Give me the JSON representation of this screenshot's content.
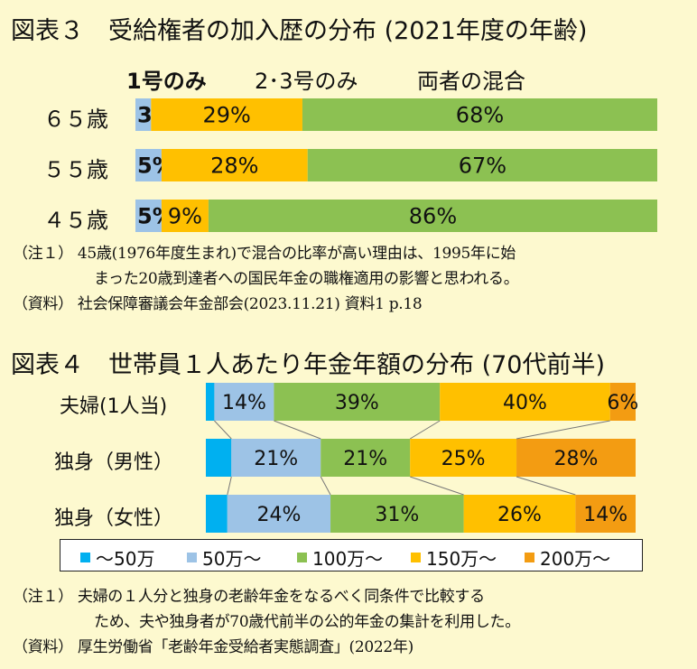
{
  "chart1": {
    "title": "図表３　受給権者の加入歴の分布 (2021年度の年齢)",
    "legend": [
      "1号のみ",
      "2･3号のみ",
      "両者の混合"
    ],
    "notes": [
      "（注１） 45歳(1976年度生まれ)で混合の比率が高い理由は、1995年に始",
      "まった20歳到達者への国民年金の職権適用の影響と思われる。",
      "（資料） 社会保障審議会年金部会(2023.11.21) 資料1 p.18"
    ]
  },
  "chart2": {
    "title": "図表４　世帯員１人あたり年金年額の分布 (70代前半)",
    "legend": [
      "～50万",
      "50万～",
      "100万～",
      "150万～",
      "200万～"
    ],
    "notes": [
      "（注１） 夫婦の１人分と独身の老齢年金をなるべく同条件で比較する",
      "ため、夫や独身者が70歳代前半の公的年金の集計を利用した。",
      "（資料） 厚生労働省「老齢年金受給者実態調査」(2022年)"
    ]
  },
  "chart_data": [
    {
      "type": "bar",
      "stacked": true,
      "orientation": "horizontal",
      "normalized_percent": true,
      "title": "図表３　受給権者の加入歴の分布 (2021年度の年齢)",
      "categories": [
        "６５歳",
        "５５歳",
        "４５歳"
      ],
      "series": [
        {
          "name": "1号のみ",
          "color": "#9dc3e6",
          "values": [
            3,
            5,
            5
          ],
          "labels": [
            "3%",
            "5%",
            "5%"
          ]
        },
        {
          "name": "2･3号のみ",
          "color": "#ffc000",
          "values": [
            29,
            28,
            9
          ],
          "labels": [
            "29%",
            "28%",
            "9%"
          ]
        },
        {
          "name": "両者の混合",
          "color": "#8cc152",
          "values": [
            68,
            67,
            86
          ],
          "labels": [
            "68%",
            "67%",
            "86%"
          ]
        }
      ]
    },
    {
      "type": "bar",
      "stacked": true,
      "orientation": "horizontal",
      "normalized_percent": true,
      "title": "図表４　世帯員１人あたり年金年額の分布 (70代前半)",
      "categories": [
        "夫婦(1人当)",
        "独身（男性）",
        "独身（女性）"
      ],
      "series": [
        {
          "name": "～50万",
          "color": "#00b0f0",
          "values": [
            2,
            6,
            5
          ],
          "labels": [
            "",
            "",
            ""
          ]
        },
        {
          "name": "50万～",
          "color": "#9dc3e6",
          "values": [
            14,
            21,
            24
          ],
          "labels": [
            "14%",
            "21%",
            "24%"
          ]
        },
        {
          "name": "100万～",
          "color": "#8cc152",
          "values": [
            39,
            21,
            31
          ],
          "labels": [
            "39%",
            "21%",
            "31%"
          ]
        },
        {
          "name": "150万～",
          "color": "#ffc000",
          "values": [
            40,
            25,
            26
          ],
          "labels": [
            "40%",
            "25%",
            "26%"
          ]
        },
        {
          "name": "200万～",
          "color": "#f39c12",
          "values": [
            6,
            28,
            14
          ],
          "labels": [
            "6%",
            "28%",
            "14%"
          ]
        }
      ]
    }
  ]
}
